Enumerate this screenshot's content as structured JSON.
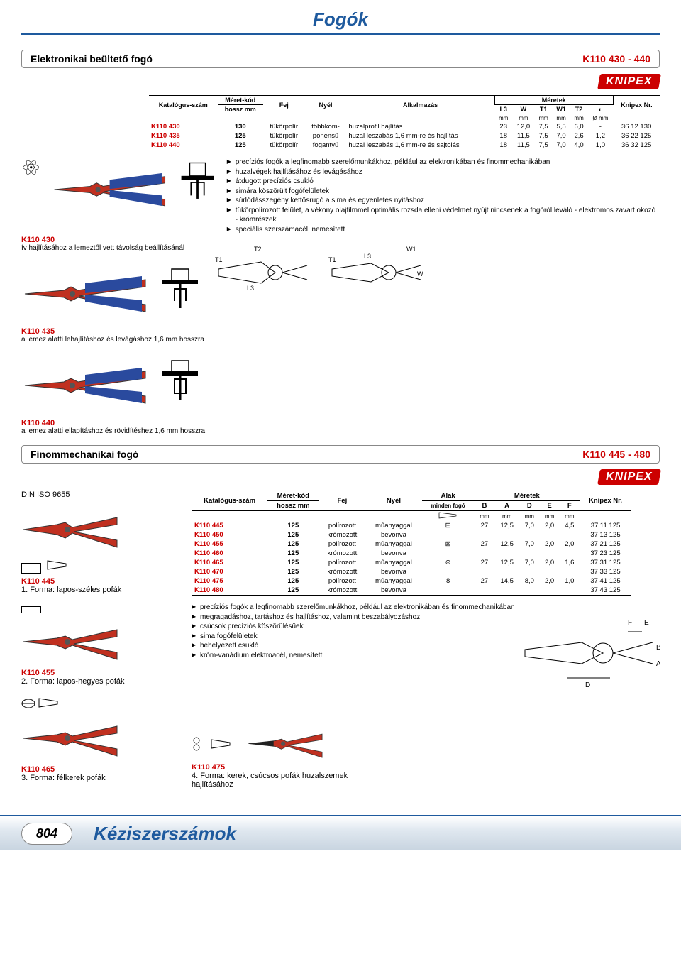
{
  "page": {
    "title": "Fogók",
    "footer_title": "Kéziszerszámok",
    "number": "804"
  },
  "brand": "KNIPEX",
  "section1": {
    "title": "Elektronikai beültető fogó",
    "code": "K110 430 - 440",
    "table": {
      "headers": {
        "cat": "Katalógus-szám",
        "size": "Méret-kód",
        "size_unit": "hossz mm",
        "fej": "Fej",
        "nyel": "Nyél",
        "app": "Alkalmazás",
        "meretek": "Méretek",
        "knipex": "Knipex Nr.",
        "cols": [
          "L3",
          "W",
          "T1",
          "W1",
          "T2",
          "◐"
        ],
        "unit_mm": "mm",
        "unit_omm": "Ø mm"
      },
      "rows": [
        {
          "cat": "K110 430",
          "size": "130",
          "fej": "tükörpolír",
          "nyel": "többkom-",
          "app": "huzalprofil hajlítás",
          "l3": "23",
          "w": "12,0",
          "t1": "7,5",
          "w1": "5,5",
          "t2": "6,0",
          "d": "-",
          "kn": "36 12 130"
        },
        {
          "cat": "K110 435",
          "size": "125",
          "fej": "tükörpolír",
          "nyel": "ponensű",
          "app": "huzal leszabás 1,6 mm-re és hajlítás",
          "l3": "18",
          "w": "11,5",
          "t1": "7,5",
          "w1": "7,0",
          "t2": "2,6",
          "d": "1,2",
          "kn": "36 22 125"
        },
        {
          "cat": "K110 440",
          "size": "125",
          "fej": "tükörpolír",
          "nyel": "fogantyú",
          "app": "huzal leszabás 1,6 mm-re és sajtolás",
          "l3": "18",
          "w": "11,5",
          "t1": "7,5",
          "w1": "7,0",
          "t2": "4,0",
          "d": "1,0",
          "kn": "36 32 125"
        }
      ]
    },
    "bullets": [
      "precíziós fogók a legfinomabb szerelőmunkákhoz, például az elektronikában és finommechanikában",
      "huzalvégek hajlításához és levágásához",
      "átdugott precíziós csukló",
      "simára köszörült fogófelületek",
      "súrlódásszegény kettősrugó a sima és egyenletes nyitáshoz",
      "tükörpolírozott felület, a vékony olajfilmmel optimális rozsda elleni védelmet nyújt nincsenek a fogóról leváló - elektromos zavart okozó - krómrészek",
      "speciális szerszámacél, nemesített"
    ],
    "products": [
      {
        "code": "K110 430",
        "desc": "ív hajlításához a lemeztől vett távolság beállításánál"
      },
      {
        "code": "K110 435",
        "desc": "a lemez alatti lehajlításhoz és levágáshoz 1,6 mm hosszra"
      },
      {
        "code": "K110 440",
        "desc": "a lemez alatti ellapításhoz és rövidítéshez 1,6 mm hosszra"
      }
    ],
    "diag_labels": {
      "t1": "T1",
      "t2": "T2",
      "w": "W",
      "w1": "W1",
      "l3": "L3"
    }
  },
  "section2": {
    "title": "Finommechanikai fogó",
    "code": "K110 445 - 480",
    "din": "DIN ISO 9655",
    "table": {
      "headers": {
        "cat": "Katalógus-szám",
        "size": "Méret-kód",
        "size_unit": "hossz mm",
        "fej": "Fej",
        "nyel": "Nyél",
        "alak": "Alak",
        "alak_sub": "minden fogó",
        "meretek": "Méretek",
        "knipex": "Knipex Nr.",
        "cols": [
          "B",
          "A",
          "D",
          "E",
          "F"
        ],
        "unit_mm": "mm"
      },
      "rows": [
        {
          "cat": "K110 445",
          "size": "125",
          "fej": "polírozott",
          "nyel": "műanyaggal",
          "icon": "⊟",
          "b": "27",
          "a": "12,5",
          "d": "7,0",
          "e": "2,0",
          "f": "4,5",
          "kn": "37 11 125"
        },
        {
          "cat": "K110 450",
          "size": "125",
          "fej": "krómozott",
          "nyel": "bevonva",
          "icon": "",
          "b": "",
          "a": "",
          "d": "",
          "e": "",
          "f": "",
          "kn": "37 13 125"
        },
        {
          "cat": "K110 455",
          "size": "125",
          "fej": "polírozott",
          "nyel": "műanyaggal",
          "icon": "⊠",
          "b": "27",
          "a": "12,5",
          "d": "7,0",
          "e": "2,0",
          "f": "2,0",
          "kn": "37 21 125"
        },
        {
          "cat": "K110 460",
          "size": "125",
          "fej": "krómozott",
          "nyel": "bevonva",
          "icon": "",
          "b": "",
          "a": "",
          "d": "",
          "e": "",
          "f": "",
          "kn": "37 23 125"
        },
        {
          "cat": "K110 465",
          "size": "125",
          "fej": "polírozott",
          "nyel": "műanyaggal",
          "icon": "⊜",
          "b": "27",
          "a": "12,5",
          "d": "7,0",
          "e": "2,0",
          "f": "1,6",
          "kn": "37 31 125"
        },
        {
          "cat": "K110 470",
          "size": "125",
          "fej": "krómozott",
          "nyel": "bevonva",
          "icon": "",
          "b": "",
          "a": "",
          "d": "",
          "e": "",
          "f": "",
          "kn": "37 33 125"
        },
        {
          "cat": "K110 475",
          "size": "125",
          "fej": "polírozott",
          "nyel": "műanyaggal",
          "icon": "8",
          "b": "27",
          "a": "14,5",
          "d": "8,0",
          "e": "2,0",
          "f": "1,0",
          "kn": "37 41 125"
        },
        {
          "cat": "K110 480",
          "size": "125",
          "fej": "krómozott",
          "nyel": "bevonva",
          "icon": "",
          "b": "",
          "a": "",
          "d": "",
          "e": "",
          "f": "",
          "kn": "37 43 125"
        }
      ]
    },
    "bullets": [
      "precíziós fogók a legfinomabb szerelőmunkákhoz, például az elektronikában és finommechanikában",
      "megragadáshoz, tartáshoz és hajlításhoz, valamint beszabályozáshoz",
      "csúcsok precíziós köszörülésűek",
      "sima fogófelületek",
      "behelyezett csukló",
      "króm-vanádium elektroacél, nemesített"
    ],
    "left_products": [
      {
        "code": "K110 445",
        "desc": "1. Forma: lapos-széles pofák"
      },
      {
        "code": "K110 455",
        "desc": "2. Forma: lapos-hegyes pofák"
      },
      {
        "code": "K110 465",
        "desc": "3. Forma: félkerek pofák"
      }
    ],
    "bottom_product": {
      "code": "K110 475",
      "desc": "4. Forma: kerek, csúcsos pofák huzalszemek hajlításához"
    },
    "diag_labels": {
      "a": "A",
      "b": "B",
      "d": "D",
      "e": "E",
      "f": "F"
    }
  }
}
